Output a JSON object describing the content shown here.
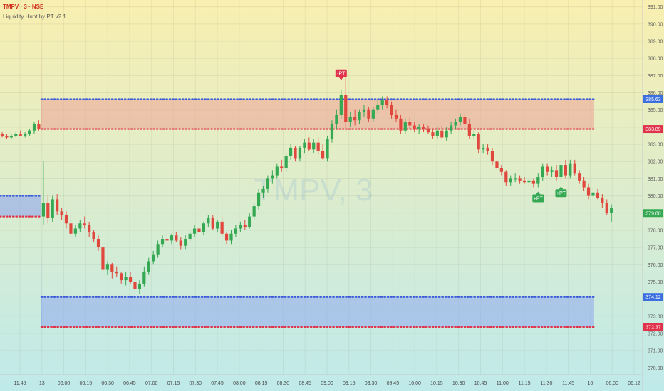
{
  "header": {
    "symbol_line": "TMPV · 3 · NSE",
    "indicator_line": "Liquidity Hunt by PT v2.1"
  },
  "watermark": "TMPV, 3",
  "colors": {
    "bg_top": "#f9efb0",
    "bg_bottom": "#bfeaea",
    "up": "#34a853",
    "down": "#e0483e",
    "line_blue": "#3b5bd9",
    "line_red": "#e0324a",
    "zone_red": "#eda89a",
    "zone_blue": "#8fa7ef"
  },
  "chart_data": {
    "type": "candlestick",
    "ylim": [
      369.6,
      391.4
    ],
    "y_ticks": [
      370,
      371,
      372,
      373,
      374,
      375,
      376,
      377,
      378,
      379,
      380,
      381,
      382,
      383,
      384,
      385,
      386,
      387,
      388,
      389,
      390,
      391
    ],
    "x_tick_labels": [
      "11:45",
      "13",
      "06:00",
      "06:15",
      "06:30",
      "06:45",
      "07:00",
      "07:15",
      "07:30",
      "07:45",
      "08:00",
      "08:15",
      "08:30",
      "08:45",
      "09:00",
      "09:15",
      "09:30",
      "09:45",
      "10:00",
      "10:15",
      "10:30",
      "10:45",
      "11:00",
      "11:15",
      "11:30",
      "11:45",
      "16",
      "06:00",
      "06:12"
    ],
    "price_labels": [
      {
        "value": 385.63,
        "color": "blue"
      },
      {
        "value": 383.89,
        "color": "red"
      },
      {
        "value": 379.0,
        "color": "green"
      },
      {
        "value": 374.12,
        "color": "blue"
      },
      {
        "value": 372.37,
        "color": "red"
      }
    ],
    "levels": [
      {
        "name": "upper-zone",
        "top": 385.63,
        "bottom": 383.89,
        "from_bar": 9
      },
      {
        "name": "lower-zone",
        "top": 374.12,
        "bottom": 372.37,
        "from_bar": 9
      },
      {
        "name": "previous-zone",
        "top": 380.0,
        "bottom": 378.8,
        "from_bar": 0,
        "to_bar": 8
      }
    ],
    "markers": [
      {
        "label": "-PT",
        "bar": 74,
        "type": "sell"
      },
      {
        "label": "+PT",
        "bar": 117,
        "type": "buy"
      },
      {
        "label": "+PT",
        "bar": 122,
        "type": "buy"
      }
    ],
    "candles": [
      [
        383.6,
        383.7,
        383.4,
        383.5
      ],
      [
        383.5,
        383.6,
        383.3,
        383.4
      ],
      [
        383.4,
        383.6,
        383.3,
        383.5
      ],
      [
        383.5,
        383.7,
        383.4,
        383.6
      ],
      [
        383.6,
        383.8,
        383.5,
        383.5
      ],
      [
        383.5,
        383.7,
        383.4,
        383.6
      ],
      [
        383.6,
        383.9,
        383.5,
        383.8
      ],
      [
        383.8,
        384.3,
        383.6,
        384.2
      ],
      [
        384.2,
        384.4,
        383.8,
        383.9
      ],
      [
        378.8,
        382.0,
        378.3,
        379.6
      ],
      [
        379.6,
        380.0,
        378.4,
        378.7
      ],
      [
        378.7,
        380.0,
        378.5,
        379.8
      ],
      [
        379.8,
        380.1,
        378.9,
        379.1
      ],
      [
        379.1,
        379.3,
        378.6,
        378.9
      ],
      [
        378.9,
        379.1,
        378.1,
        378.4
      ],
      [
        378.4,
        378.9,
        377.6,
        377.8
      ],
      [
        377.8,
        378.3,
        377.6,
        378.1
      ],
      [
        378.1,
        378.6,
        377.9,
        378.4
      ],
      [
        378.4,
        378.8,
        378.1,
        378.3
      ],
      [
        378.3,
        378.5,
        377.6,
        377.9
      ],
      [
        377.9,
        378.0,
        377.3,
        377.5
      ],
      [
        377.5,
        377.7,
        376.8,
        377.0
      ],
      [
        377.0,
        377.1,
        375.5,
        375.7
      ],
      [
        375.7,
        376.2,
        375.4,
        376.0
      ],
      [
        376.0,
        376.1,
        375.2,
        375.6
      ],
      [
        375.6,
        375.9,
        375.3,
        375.5
      ],
      [
        375.5,
        375.6,
        374.9,
        375.1
      ],
      [
        375.1,
        375.6,
        374.8,
        375.3
      ],
      [
        375.3,
        375.6,
        374.9,
        375.0
      ],
      [
        375.0,
        375.2,
        374.3,
        374.6
      ],
      [
        374.6,
        375.1,
        374.3,
        374.9
      ],
      [
        374.9,
        375.9,
        374.7,
        375.6
      ],
      [
        375.6,
        376.4,
        375.4,
        376.2
      ],
      [
        376.2,
        376.8,
        376.0,
        376.6
      ],
      [
        376.6,
        377.4,
        376.4,
        377.2
      ],
      [
        377.2,
        377.7,
        377.0,
        377.5
      ],
      [
        377.5,
        377.8,
        377.2,
        377.4
      ],
      [
        377.4,
        377.8,
        377.2,
        377.7
      ],
      [
        377.7,
        377.9,
        377.3,
        377.4
      ],
      [
        377.4,
        377.6,
        376.9,
        377.1
      ],
      [
        377.1,
        377.7,
        376.9,
        377.5
      ],
      [
        377.5,
        378.0,
        377.3,
        377.8
      ],
      [
        377.8,
        378.3,
        377.6,
        378.1
      ],
      [
        378.1,
        378.4,
        377.8,
        377.9
      ],
      [
        377.9,
        378.5,
        377.7,
        378.4
      ],
      [
        378.4,
        378.9,
        378.2,
        378.7
      ],
      [
        378.7,
        378.9,
        378.0,
        378.1
      ],
      [
        378.1,
        378.6,
        377.9,
        378.5
      ],
      [
        378.5,
        378.8,
        377.6,
        377.8
      ],
      [
        377.8,
        377.9,
        377.2,
        377.4
      ],
      [
        377.4,
        378.0,
        377.2,
        377.8
      ],
      [
        377.8,
        378.3,
        377.6,
        378.1
      ],
      [
        378.1,
        378.5,
        377.9,
        378.3
      ],
      [
        378.3,
        378.6,
        378.0,
        378.2
      ],
      [
        378.2,
        379.0,
        378.1,
        378.8
      ],
      [
        378.8,
        379.6,
        378.6,
        379.4
      ],
      [
        379.4,
        380.4,
        379.2,
        380.2
      ],
      [
        380.2,
        380.6,
        379.9,
        380.4
      ],
      [
        380.4,
        381.2,
        380.2,
        381.0
      ],
      [
        381.0,
        381.5,
        380.7,
        381.2
      ],
      [
        381.2,
        381.9,
        381.0,
        381.7
      ],
      [
        381.7,
        382.1,
        381.4,
        381.6
      ],
      [
        381.6,
        382.5,
        381.4,
        382.3
      ],
      [
        382.3,
        383.0,
        382.1,
        382.8
      ],
      [
        382.8,
        382.9,
        382.0,
        382.2
      ],
      [
        382.2,
        382.9,
        382.0,
        382.8
      ],
      [
        382.8,
        383.3,
        382.5,
        383.1
      ],
      [
        383.1,
        383.4,
        382.6,
        382.7
      ],
      [
        382.7,
        383.3,
        382.5,
        383.1
      ],
      [
        383.1,
        383.4,
        382.4,
        382.6
      ],
      [
        382.6,
        383.0,
        382.1,
        382.2
      ],
      [
        382.2,
        383.5,
        382.0,
        383.3
      ],
      [
        383.3,
        384.4,
        383.1,
        384.2
      ],
      [
        384.2,
        385.0,
        383.9,
        384.7
      ],
      [
        384.7,
        386.2,
        384.5,
        385.9
      ],
      [
        385.9,
        387.2,
        383.8,
        384.3
      ],
      [
        384.3,
        384.9,
        384.0,
        384.6
      ],
      [
        384.6,
        385.0,
        384.1,
        384.4
      ],
      [
        384.4,
        385.0,
        384.2,
        384.9
      ],
      [
        384.9,
        385.3,
        384.6,
        385.0
      ],
      [
        385.0,
        385.2,
        384.3,
        384.5
      ],
      [
        384.5,
        385.2,
        384.3,
        385.0
      ],
      [
        385.0,
        385.6,
        384.8,
        385.3
      ],
      [
        385.3,
        385.8,
        385.0,
        385.6
      ],
      [
        385.6,
        385.8,
        385.1,
        385.3
      ],
      [
        385.3,
        385.5,
        384.5,
        384.7
      ],
      [
        384.7,
        385.0,
        384.3,
        384.5
      ],
      [
        384.5,
        384.7,
        383.6,
        383.8
      ],
      [
        383.8,
        384.5,
        383.6,
        384.3
      ],
      [
        384.3,
        384.6,
        383.9,
        384.1
      ],
      [
        384.1,
        384.3,
        383.7,
        383.9
      ],
      [
        383.9,
        384.2,
        383.6,
        384.0
      ],
      [
        384.0,
        384.2,
        383.7,
        383.9
      ],
      [
        383.9,
        384.1,
        383.6,
        383.7
      ],
      [
        383.7,
        383.9,
        383.3,
        383.5
      ],
      [
        383.5,
        384.0,
        383.3,
        383.8
      ],
      [
        383.8,
        384.1,
        383.3,
        383.4
      ],
      [
        383.4,
        384.0,
        383.2,
        383.8
      ],
      [
        383.8,
        384.3,
        383.6,
        384.1
      ],
      [
        384.1,
        384.5,
        383.9,
        384.3
      ],
      [
        384.3,
        384.8,
        384.1,
        384.6
      ],
      [
        384.6,
        384.8,
        384.0,
        384.2
      ],
      [
        384.2,
        384.5,
        383.3,
        383.5
      ],
      [
        383.5,
        383.8,
        383.3,
        383.6
      ],
      [
        383.6,
        383.7,
        382.5,
        382.7
      ],
      [
        382.7,
        383.0,
        382.5,
        382.8
      ],
      [
        382.8,
        383.0,
        382.4,
        382.6
      ],
      [
        382.6,
        382.8,
        381.8,
        382.0
      ],
      [
        382.0,
        382.1,
        381.5,
        381.6
      ],
      [
        381.6,
        381.8,
        381.2,
        381.4
      ],
      [
        381.4,
        381.5,
        380.6,
        380.8
      ],
      [
        380.8,
        381.2,
        380.6,
        381.0
      ],
      [
        381.0,
        381.3,
        380.8,
        381.0
      ],
      [
        381.0,
        381.2,
        380.7,
        380.9
      ],
      [
        380.9,
        381.1,
        380.7,
        380.8
      ],
      [
        380.8,
        381.0,
        380.6,
        380.9
      ],
      [
        380.9,
        381.0,
        380.5,
        380.7
      ],
      [
        380.7,
        381.3,
        380.5,
        381.1
      ],
      [
        381.1,
        381.9,
        380.9,
        381.7
      ],
      [
        381.7,
        381.9,
        381.2,
        381.4
      ],
      [
        381.4,
        381.7,
        381.1,
        381.5
      ],
      [
        381.5,
        381.8,
        380.9,
        381.1
      ],
      [
        381.1,
        382.0,
        380.8,
        381.8
      ],
      [
        381.8,
        382.1,
        381.0,
        381.2
      ],
      [
        381.2,
        382.1,
        381.0,
        381.9
      ],
      [
        381.9,
        382.1,
        381.2,
        381.3
      ],
      [
        381.3,
        381.5,
        380.7,
        380.9
      ],
      [
        380.9,
        381.1,
        380.3,
        380.5
      ],
      [
        380.5,
        380.7,
        379.8,
        380.0
      ],
      [
        380.0,
        380.5,
        379.7,
        380.2
      ],
      [
        380.2,
        380.4,
        379.8,
        379.9
      ],
      [
        379.9,
        380.1,
        379.3,
        379.6
      ],
      [
        379.6,
        379.8,
        378.9,
        379.0
      ],
      [
        379.0,
        379.5,
        378.5,
        379.3
      ]
    ]
  }
}
